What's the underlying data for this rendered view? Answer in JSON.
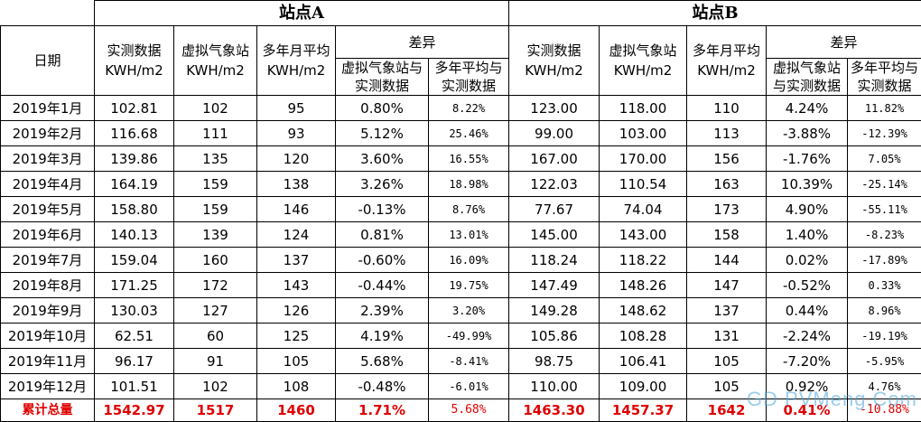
{
  "header": {
    "site_a": "站点A",
    "site_b": "站点B",
    "date": "日期",
    "measured": "实测数据KWH/m2",
    "virtual": "虚拟气象站KWH/m2",
    "avg": "多年月平均KWH/m2",
    "diff": "差异",
    "diff_virtual": "虚拟气象站与实测数据",
    "diff_avg": "多年平均与实测数据"
  },
  "rows": [
    {
      "date": "2019年1月",
      "a": [
        "102.81",
        "102",
        "95",
        "0.80%",
        "8.22%"
      ],
      "b": [
        "123.00",
        "118.00",
        "110",
        "4.24%",
        "11.82%"
      ]
    },
    {
      "date": "2019年2月",
      "a": [
        "116.68",
        "111",
        "93",
        "5.12%",
        "25.46%"
      ],
      "b": [
        "99.00",
        "103.00",
        "113",
        "-3.88%",
        "-12.39%"
      ]
    },
    {
      "date": "2019年3月",
      "a": [
        "139.86",
        "135",
        "120",
        "3.60%",
        "16.55%"
      ],
      "b": [
        "167.00",
        "170.00",
        "156",
        "-1.76%",
        "7.05%"
      ]
    },
    {
      "date": "2019年4月",
      "a": [
        "164.19",
        "159",
        "138",
        "3.26%",
        "18.98%"
      ],
      "b": [
        "122.03",
        "110.54",
        "163",
        "10.39%",
        "-25.14%"
      ]
    },
    {
      "date": "2019年5月",
      "a": [
        "158.80",
        "159",
        "146",
        "-0.13%",
        "8.76%"
      ],
      "b": [
        "77.67",
        "74.04",
        "173",
        "4.90%",
        "-55.11%"
      ]
    },
    {
      "date": "2019年6月",
      "a": [
        "140.13",
        "139",
        "124",
        "0.81%",
        "13.01%"
      ],
      "b": [
        "145.00",
        "143.00",
        "158",
        "1.40%",
        "-8.23%"
      ]
    },
    {
      "date": "2019年7月",
      "a": [
        "159.04",
        "160",
        "137",
        "-0.60%",
        "16.09%"
      ],
      "b": [
        "118.24",
        "118.22",
        "144",
        "0.02%",
        "-17.89%"
      ]
    },
    {
      "date": "2019年8月",
      "a": [
        "171.25",
        "172",
        "143",
        "-0.44%",
        "19.75%"
      ],
      "b": [
        "147.49",
        "148.26",
        "147",
        "-0.52%",
        "0.33%"
      ]
    },
    {
      "date": "2019年9月",
      "a": [
        "130.03",
        "127",
        "126",
        "2.39%",
        "3.20%"
      ],
      "b": [
        "149.28",
        "148.62",
        "137",
        "0.44%",
        "8.96%"
      ]
    },
    {
      "date": "2019年10月",
      "a": [
        "62.51",
        "60",
        "125",
        "4.19%",
        "-49.99%"
      ],
      "b": [
        "105.86",
        "108.28",
        "131",
        "-2.24%",
        "-19.19%"
      ]
    },
    {
      "date": "2019年11月",
      "a": [
        "96.17",
        "91",
        "105",
        "5.68%",
        "-8.41%"
      ],
      "b": [
        "98.75",
        "106.41",
        "105",
        "-7.20%",
        "-5.95%"
      ]
    },
    {
      "date": "2019年12月",
      "a": [
        "101.51",
        "102",
        "108",
        "-0.48%",
        "-6.01%"
      ],
      "b": [
        "110.00",
        "109.00",
        "105",
        "0.92%",
        "4.76%"
      ]
    }
  ],
  "total": {
    "label": "累计总量",
    "a": [
      "1542.97",
      "1517",
      "1460",
      "1.71%",
      "5.68%"
    ],
    "b": [
      "1463.30",
      "1457.37",
      "1642",
      "0.41%",
      "-10.88%"
    ]
  },
  "watermark": "GD PVMeng.Com"
}
